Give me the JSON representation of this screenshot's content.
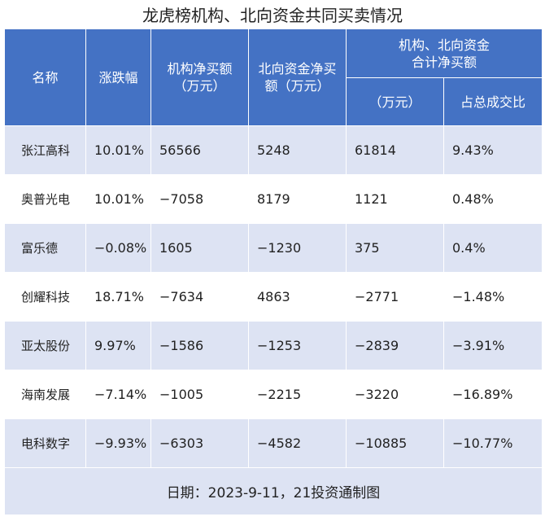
{
  "title": "龙虎榜机构、北向资金共同买卖情况",
  "headers": {
    "name": "名称",
    "change": "涨跌幅",
    "inst_net": "机构净买额\n（万元）",
    "north_net": "北向资金净买\n额（万元）",
    "combined_group": "机构、北向资金\n合计净买额",
    "combined_amount": "（万元）",
    "turnover_ratio": "占总成交比"
  },
  "rows": [
    {
      "name": "张江高科",
      "change": "10.01%",
      "inst_net": "56566",
      "north_net": "5248",
      "combined": "61814",
      "ratio": "9.43%"
    },
    {
      "name": "奥普光电",
      "change": "10.01%",
      "inst_net": "−7058",
      "north_net": "8179",
      "combined": "1121",
      "ratio": "0.48%"
    },
    {
      "name": "富乐德",
      "change": "−0.08%",
      "inst_net": "1605",
      "north_net": "−1230",
      "combined": "375",
      "ratio": "0.4%"
    },
    {
      "name": "创耀科技",
      "change": "18.71%",
      "inst_net": "−7634",
      "north_net": "4863",
      "combined": "−2771",
      "ratio": "−1.48%"
    },
    {
      "name": "亚太股份",
      "change": "9.97%",
      "inst_net": "−1586",
      "north_net": "−1253",
      "combined": "−2839",
      "ratio": "−3.91%"
    },
    {
      "name": "海南发展",
      "change": "−7.14%",
      "inst_net": "−1005",
      "north_net": "−2215",
      "combined": "−3220",
      "ratio": "−16.89%"
    },
    {
      "name": "电科数字",
      "change": "−9.93%",
      "inst_net": "−6303",
      "north_net": "−4582",
      "combined": "−10885",
      "ratio": "−10.77%"
    }
  ],
  "footer": "日期：2023-9-11，21投资通制图",
  "colors": {
    "header_bg": "#4472c4",
    "band_bg": "#dde3f3"
  }
}
